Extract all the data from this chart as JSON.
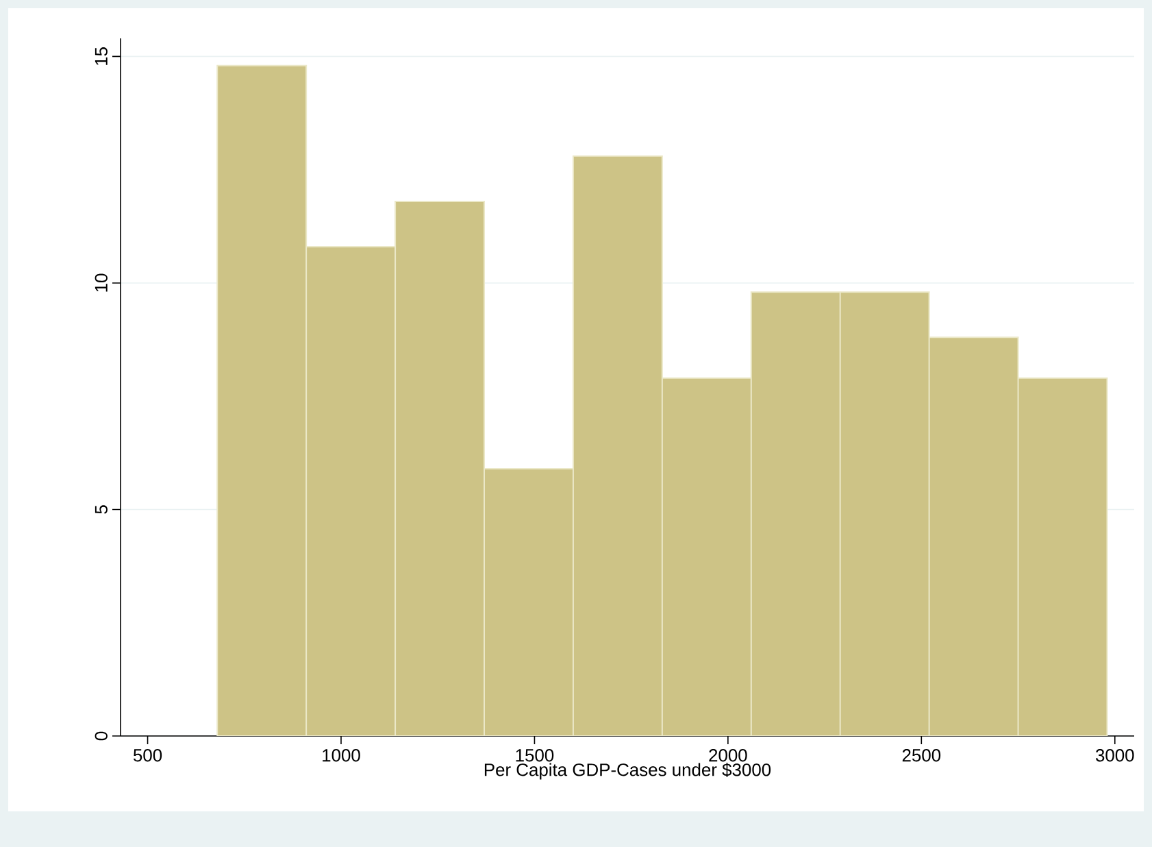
{
  "chart_data": {
    "type": "histogram",
    "xlabel": "Per Capita GDP-Cases under $3000",
    "bins": [
      680,
      910,
      1140,
      1370,
      1600,
      1830,
      2060,
      2290,
      2520,
      2750,
      2980
    ],
    "values": [
      14.8,
      10.8,
      11.8,
      5.9,
      12.8,
      7.9,
      9.8,
      9.8,
      8.8,
      7.9
    ],
    "color": "#cdc386",
    "xlim": [
      430,
      3050
    ],
    "ylim": [
      0,
      15.4
    ],
    "xticks": [
      500,
      1000,
      1500,
      2000,
      2500,
      3000
    ],
    "yticks": [
      0,
      5,
      10,
      15
    ],
    "grid": "y"
  }
}
